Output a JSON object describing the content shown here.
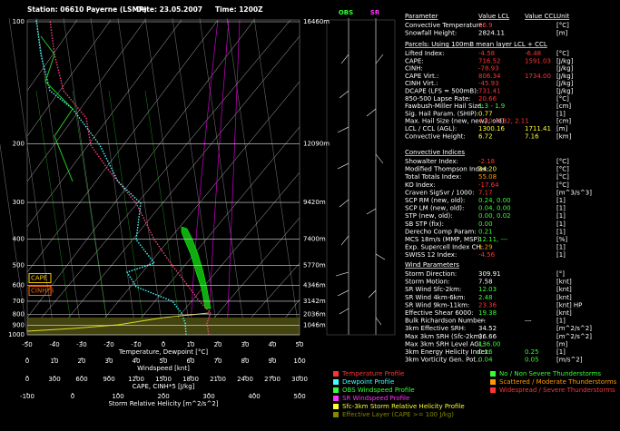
{
  "header": {
    "station": "Station: 06610 Payerne (LSMP)",
    "date": "Date: 23.05.2007",
    "time": "Time: 1200Z"
  },
  "diagram": {
    "pressure_levels": [
      100,
      200,
      300,
      400,
      500,
      600,
      700,
      800,
      900,
      1000
    ],
    "heights": [
      "16460m",
      "12090m",
      "9420m",
      "7400m",
      "5770m",
      "4346m",
      "3142m",
      "2036m",
      "1046m"
    ],
    "temperature_ticks": [
      -50,
      -40,
      -30,
      -20,
      -10,
      0,
      10,
      20,
      30,
      40,
      50
    ],
    "temperature_title": "Temperature, Dewpoint [°C]",
    "wind_ticks": [
      0,
      10,
      20,
      30,
      40,
      50,
      60,
      70,
      80,
      90,
      100
    ],
    "wind_title": "Windspeed [knt]",
    "cape_ticks": [
      0,
      300,
      600,
      900,
      1200,
      1500,
      1800,
      2100,
      2400,
      2700,
      3000
    ],
    "cape_title": "CAPE, CINH*5 [J/kg]",
    "srh_ticks": [
      -100,
      0,
      100,
      200,
      300,
      400,
      500
    ],
    "srh_title": "Storm Relative Helicity [m^2/s^2]",
    "annotations": [
      "CAPE",
      "CINH*5"
    ],
    "wind_panels": [
      "OBS",
      "SR"
    ]
  },
  "table": {
    "header": [
      "Parameter",
      "Value LCL",
      "Value CCL",
      "Unit"
    ],
    "sections": [
      {
        "title": null,
        "rows": [
          [
            "Convective Temperature:",
            "26.9",
            null,
            "[°C]"
          ],
          [
            "Snowfall Height:",
            "2824.11",
            null,
            "[m]"
          ]
        ]
      },
      {
        "title": "Parcels: Using 100mB mean layer LCL + CCL",
        "rows": [
          [
            "Lifted Index:",
            "-4.58",
            "-6.48",
            "[°C]"
          ],
          [
            "CAPE:",
            "716.52",
            "1591.03",
            "[J/kg]"
          ],
          [
            "CINH:",
            "-78.93",
            null,
            "[J/kg]"
          ],
          [
            "CAPE Virt.:",
            "806.34",
            "1734.00",
            "[J/kg]"
          ],
          [
            "CINH Virt.:",
            "-45.93",
            null,
            "[J/kg]"
          ],
          [
            "DCAPE (LFS = 500mB):",
            "731.41",
            null,
            "[J/kg]"
          ],
          [
            "850-500 Lapse Rate:",
            "20.66",
            null,
            "[°C]"
          ],
          [
            "Fawbush-Miller Hail Size:",
            "1.3 - 1.9",
            null,
            "[cm]"
          ],
          [
            "Sig. Hail Param. (SHIP):",
            "0.77",
            null,
            "[1]"
          ],
          [
            "Max. Hail Size (new, new2, old):",
            "4.40, 4.32, 2.11",
            null,
            "[cm]"
          ],
          [
            "LCL / CCL (AGL):",
            "1300.16",
            "1711.41",
            "[m]"
          ],
          [
            "Convective Height:",
            "6.72",
            "7.16",
            "[km]"
          ]
        ]
      },
      {
        "title": "Convective Indices",
        "rows": [
          [
            "Showalter Index:",
            "-2.18",
            null,
            "[°C]"
          ],
          [
            "Modified Thompson Index:",
            "34.20",
            null,
            "[°C]"
          ],
          [
            "Total Totals Index:",
            "55.08",
            null,
            "[°C]"
          ],
          [
            "KO Index:",
            "-17.64",
            null,
            "[°C]"
          ],
          [
            "Craven SigSvr / 1000:",
            "7.17",
            null,
            "[m^3/s^3]"
          ],
          [
            "SCP RM (new, old):",
            "0.24, 0.00",
            null,
            "[1]"
          ],
          [
            "SCP LM (new, old):",
            "0.04, 0.00",
            null,
            "[1]"
          ],
          [
            "STP (new, old):",
            "0.00, 0.02",
            null,
            "[1]"
          ],
          [
            "SB STP (fix):",
            "0.00",
            null,
            "[1]"
          ],
          [
            "Derecho Comp Param:",
            "0.21",
            null,
            "[1]"
          ],
          [
            "MCS 18m/s (MMP, MSP):",
            "12.11, ---",
            null,
            "[%]"
          ],
          [
            "Exp. Supercell Index CH:",
            "1.29",
            null,
            "[1]"
          ],
          [
            "SWISS 12 Index:",
            "-4.56",
            null,
            "[1]"
          ]
        ]
      },
      {
        "title": "Wind Parameters",
        "rows": [
          [
            "Storm Direction:",
            "309.91",
            null,
            "[°]"
          ],
          [
            "Storm Motion:",
            "7.58",
            null,
            "[knt]"
          ],
          [
            "SR Wind Sfc-2km:",
            "12.03",
            null,
            "[knt]"
          ],
          [
            "SR Wind 4km-6km:",
            "2.48",
            null,
            "[knt]"
          ],
          [
            "SR Wind 9km-11km:",
            "23.36",
            null,
            "[knt] HP"
          ],
          [
            "Effective Shear 6000:",
            "19.38",
            null,
            "[knt]"
          ],
          [
            "Bulk Richardson Number:",
            "---",
            "---",
            "[1]"
          ],
          [
            "3km Effective SRH:",
            "34.52",
            null,
            "[m^2/s^2]"
          ],
          [
            "Max 3km SRH (Sfc-2km):",
            "36.66",
            null,
            "[m^2/s^2]"
          ],
          [
            "Max 3km SRH Level AGL:",
            "136.00",
            null,
            "[m]"
          ],
          [
            "3km Energy Helicity Index:",
            "0.16",
            "0.25",
            "[1]"
          ],
          [
            "3km Vorticity Gen. Pot.:",
            "0.04",
            "0.05",
            "[m/s^2]"
          ]
        ]
      }
    ]
  },
  "legend": {
    "profiles": [
      "Temperature Profile",
      "Dewpoint Profile",
      "OBS Windspeed Profile",
      "SR Windspeed Profile",
      "Sfc-3km Storm Relative Helicity Profile",
      "Effective Layer (CAPE >= 100 J/kg)"
    ],
    "thunderstorms": [
      "No / Non Severe Thunderstorms",
      "Scattered / Moderate Thunderstorms",
      "Widespread / Severe Thunderstorms"
    ]
  }
}
